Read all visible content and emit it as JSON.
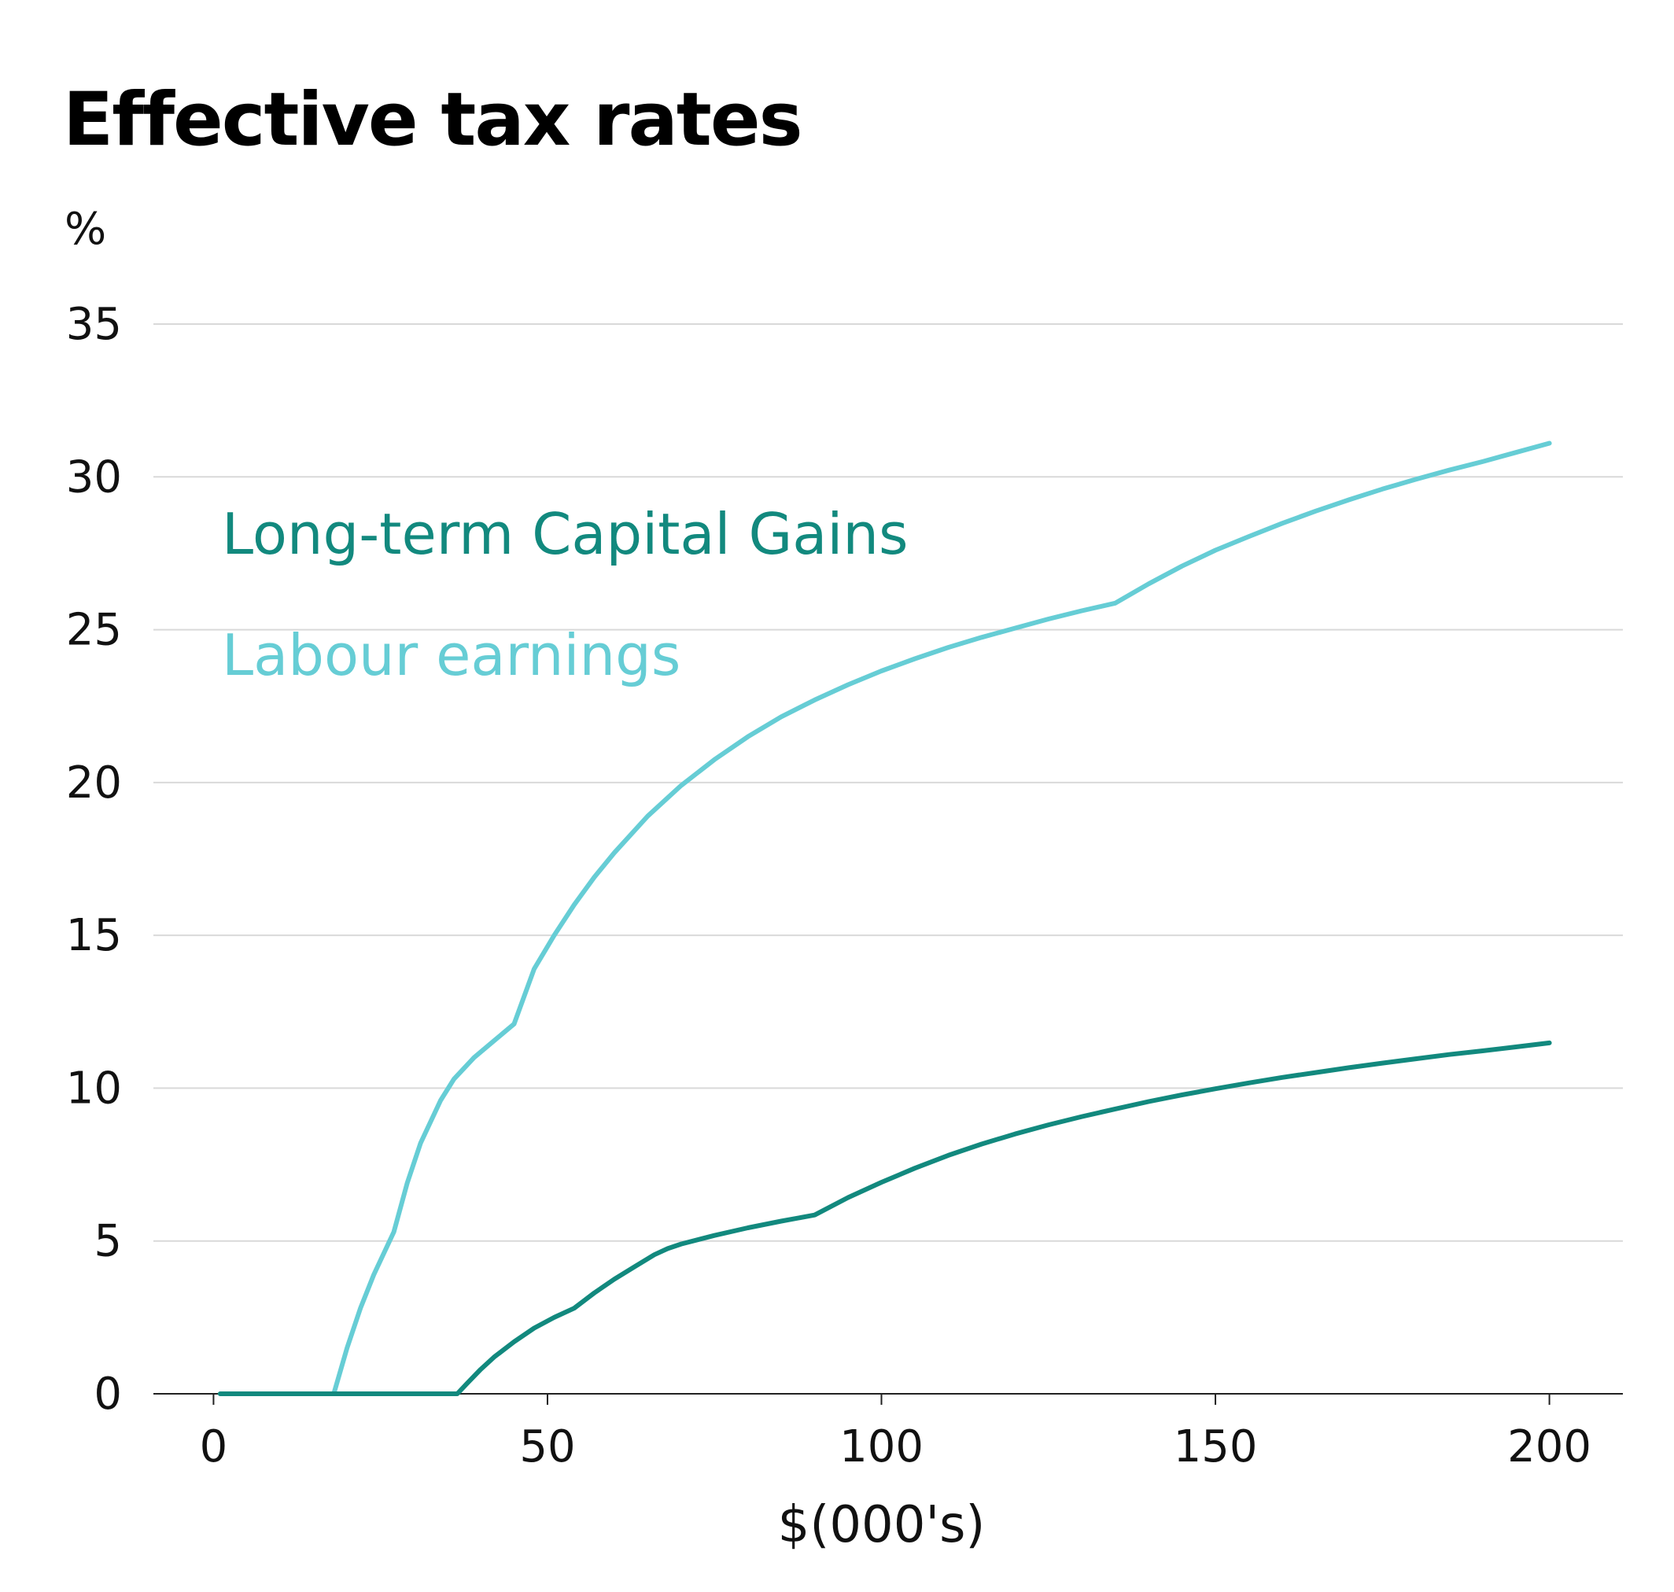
{
  "chart_data": {
    "type": "line",
    "title": "Effective tax rates",
    "ylabel": "%",
    "xlabel": "$(000's)",
    "xlim": [
      -9,
      211
    ],
    "ylim": [
      0,
      35
    ],
    "xticks": [
      0,
      50,
      100,
      150,
      200
    ],
    "yticks": [
      0,
      5,
      10,
      15,
      20,
      25,
      30,
      35
    ],
    "grid": true,
    "legend_position": "top-left",
    "series": [
      {
        "name": "Long-term Capital Gains",
        "color": "#12897e",
        "x": [
          1,
          5,
          10,
          15,
          20,
          25,
          30,
          35,
          36.5,
          38,
          40,
          42,
          45,
          48,
          51,
          54,
          57,
          60,
          63,
          66,
          68,
          70,
          75,
          80,
          85,
          90,
          95,
          100,
          105,
          110,
          115,
          120,
          125,
          130,
          135,
          140,
          145,
          150,
          155,
          160,
          165,
          170,
          175,
          180,
          185,
          190,
          195,
          200
        ],
        "y": [
          0,
          0,
          0,
          0,
          0,
          0,
          0,
          0,
          0,
          0.35,
          0.8,
          1.2,
          1.7,
          2.15,
          2.5,
          2.8,
          3.3,
          3.75,
          4.15,
          4.55,
          4.75,
          4.9,
          5.18,
          5.43,
          5.65,
          5.85,
          6.42,
          6.92,
          7.38,
          7.8,
          8.17,
          8.5,
          8.8,
          9.07,
          9.32,
          9.56,
          9.78,
          9.98,
          10.17,
          10.35,
          10.51,
          10.67,
          10.82,
          10.96,
          11.1,
          11.22,
          11.35,
          11.48
        ]
      },
      {
        "name": "Labour earnings",
        "color": "#66cdd5",
        "x": [
          1,
          5,
          10,
          15,
          18,
          20,
          22,
          24,
          27,
          29,
          31,
          34,
          36,
          39,
          42,
          45,
          48,
          51,
          54,
          57,
          60,
          65,
          70,
          75,
          80,
          85,
          90,
          95,
          100,
          105,
          110,
          115,
          120,
          125,
          130,
          135,
          140,
          145,
          150,
          155,
          160,
          165,
          170,
          175,
          180,
          185,
          190,
          195,
          200
        ],
        "y": [
          0,
          0,
          0,
          0,
          0,
          1.5,
          2.8,
          3.9,
          5.3,
          6.9,
          8.2,
          9.6,
          10.3,
          11.0,
          11.55,
          12.1,
          13.9,
          15.0,
          16.0,
          16.9,
          17.7,
          18.9,
          19.9,
          20.75,
          21.5,
          22.15,
          22.7,
          23.2,
          23.65,
          24.05,
          24.42,
          24.75,
          25.05,
          25.35,
          25.62,
          25.87,
          26.5,
          27.08,
          27.6,
          28.05,
          28.48,
          28.88,
          29.25,
          29.6,
          29.92,
          30.22,
          30.5,
          30.8,
          31.1
        ]
      }
    ]
  }
}
